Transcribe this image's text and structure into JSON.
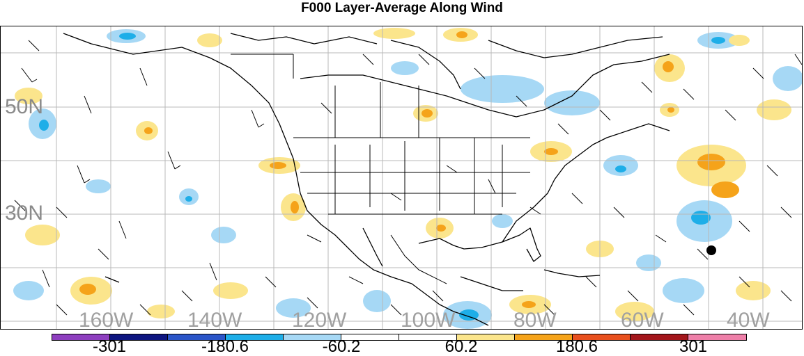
{
  "title": "F000 Layer-Average Along Wind",
  "lat_labels": [
    "50N",
    "30N"
  ],
  "lon_labels": [
    "160W",
    "140W",
    "120W",
    "100W",
    "80W",
    "60W",
    "40W"
  ],
  "colorbar": {
    "colors": [
      "#8e3fbf",
      "#0d1580",
      "#2a55c8",
      "#1eaee8",
      "#a6d8f5",
      "#ffffff",
      "#ffffff",
      "#fbe58c",
      "#f5a31a",
      "#e8501e",
      "#a3161b",
      "#ee7fa8"
    ],
    "labels": [
      "-301",
      "-180.6",
      "-60.2",
      "60.2",
      "180.6",
      "301"
    ]
  },
  "fill_colors": {
    "neg_light": "#a6d8f5",
    "neg_mid": "#1eaee8",
    "pos_light": "#fbe58c",
    "pos_mid": "#f5a31a"
  }
}
